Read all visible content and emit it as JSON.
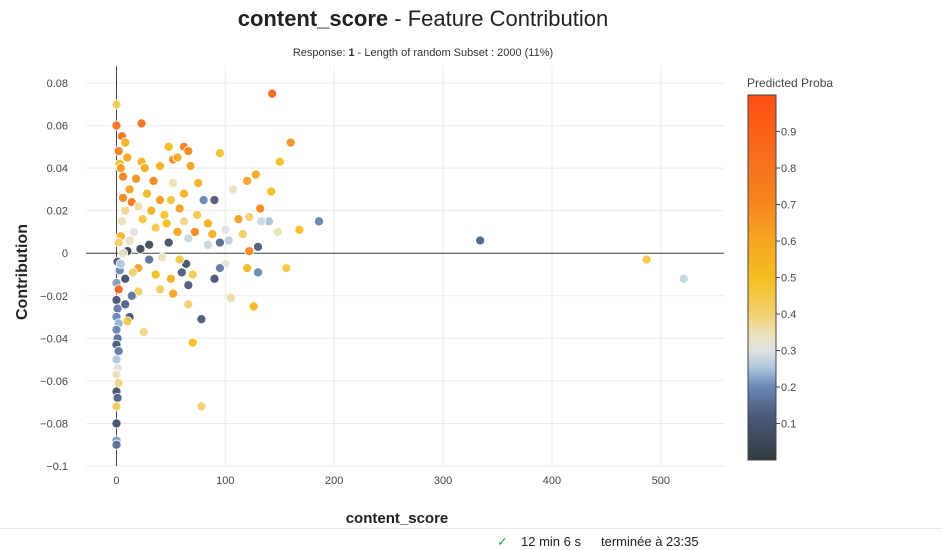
{
  "title_var": "content_score",
  "title_rest": " - Feature Contribution",
  "subtitle": {
    "pre": "Response: ",
    "response": "1",
    "post": " - Length of random Subset : 2000 (11%)"
  },
  "colorbar_title": "Predicted Proba",
  "status": {
    "duration": "12 min 6 s",
    "finished": "terminée à 23:35"
  },
  "chart_data": {
    "type": "scatter",
    "title": "content_score - Feature Contribution",
    "xlabel": "content_score",
    "ylabel": "Contribution",
    "xlim": [
      -28,
      558
    ],
    "ylim": [
      -0.1,
      0.088
    ],
    "xticks": [
      0,
      100,
      200,
      300,
      400,
      500
    ],
    "yticks": [
      -0.1,
      -0.08,
      -0.06,
      -0.04,
      -0.02,
      0,
      0.02,
      0.04,
      0.06,
      0.08
    ],
    "ytick_labels": [
      "−0.1",
      "−0.08",
      "−0.06",
      "−0.04",
      "−0.02",
      "0",
      "0.02",
      "0.04",
      "0.06",
      "0.08"
    ],
    "grid": true,
    "colorscale": {
      "min": 0,
      "max": 1,
      "ticks": [
        0.1,
        0.2,
        0.3,
        0.4,
        0.5,
        0.6,
        0.7,
        0.8,
        0.9
      ],
      "stops": [
        [
          0,
          "#353b44"
        ],
        [
          0.12,
          "#4a5a78"
        ],
        [
          0.2,
          "#6b86b5"
        ],
        [
          0.25,
          "#a9c2dc"
        ],
        [
          0.3,
          "#dfe3e2"
        ],
        [
          0.35,
          "#ede0b5"
        ],
        [
          0.4,
          "#f2d06e"
        ],
        [
          0.5,
          "#f4bf1f"
        ],
        [
          0.6,
          "#f5a623"
        ],
        [
          0.7,
          "#f5871f"
        ],
        [
          0.85,
          "#f66a1c"
        ],
        [
          1.0,
          "#ff4d12"
        ]
      ]
    },
    "points": [
      [
        143,
        0.075,
        0.88
      ],
      [
        23,
        0.061,
        0.82
      ],
      [
        0,
        0.07,
        0.42
      ],
      [
        0,
        0.06,
        0.8
      ],
      [
        160,
        0.052,
        0.66
      ],
      [
        62,
        0.05,
        0.75
      ],
      [
        48,
        0.05,
        0.52
      ],
      [
        66,
        0.048,
        0.7
      ],
      [
        95,
        0.047,
        0.48
      ],
      [
        52,
        0.044,
        0.68
      ],
      [
        56,
        0.045,
        0.58
      ],
      [
        150,
        0.043,
        0.5
      ],
      [
        23,
        0.043,
        0.55
      ],
      [
        40,
        0.041,
        0.56
      ],
      [
        68,
        0.041,
        0.62
      ],
      [
        5,
        0.055,
        0.8
      ],
      [
        8,
        0.052,
        0.55
      ],
      [
        2,
        0.048,
        0.72
      ],
      [
        10,
        0.045,
        0.6
      ],
      [
        3,
        0.042,
        0.5
      ],
      [
        128,
        0.037,
        0.58
      ],
      [
        120,
        0.034,
        0.6
      ],
      [
        75,
        0.033,
        0.55
      ],
      [
        142,
        0.029,
        0.5
      ],
      [
        52,
        0.033,
        0.35
      ],
      [
        107,
        0.03,
        0.33
      ],
      [
        80,
        0.025,
        0.2
      ],
      [
        90,
        0.025,
        0.12
      ],
      [
        62,
        0.028,
        0.55
      ],
      [
        58,
        0.021,
        0.62
      ],
      [
        132,
        0.021,
        0.7
      ],
      [
        112,
        0.016,
        0.62
      ],
      [
        122,
        0.017,
        0.4
      ],
      [
        140,
        0.015,
        0.25
      ],
      [
        133,
        0.015,
        0.28
      ],
      [
        186,
        0.015,
        0.19
      ],
      [
        168,
        0.011,
        0.5
      ],
      [
        148,
        0.01,
        0.35
      ],
      [
        100,
        0.011,
        0.3
      ],
      [
        103,
        0.006,
        0.27
      ],
      [
        116,
        0.009,
        0.42
      ],
      [
        88,
        0.009,
        0.55
      ],
      [
        72,
        0.01,
        0.7
      ],
      [
        66,
        0.007,
        0.28
      ],
      [
        95,
        0.005,
        0.15
      ],
      [
        130,
        0.003,
        0.12
      ],
      [
        122,
        0.001,
        0.7
      ],
      [
        84,
        0.004,
        0.28
      ],
      [
        334,
        0.006,
        0.14
      ],
      [
        487,
        -0.003,
        0.45
      ],
      [
        521,
        -0.012,
        0.28
      ],
      [
        100,
        -0.005,
        0.32
      ],
      [
        95,
        -0.007,
        0.18
      ],
      [
        120,
        -0.007,
        0.52
      ],
      [
        130,
        -0.009,
        0.2
      ],
      [
        156,
        -0.007,
        0.45
      ],
      [
        90,
        -0.012,
        0.1
      ],
      [
        70,
        -0.01,
        0.44
      ],
      [
        60,
        -0.009,
        0.12
      ],
      [
        50,
        -0.012,
        0.56
      ],
      [
        36,
        -0.01,
        0.5
      ],
      [
        20,
        -0.007,
        0.62
      ],
      [
        15,
        -0.009,
        0.4
      ],
      [
        40,
        -0.017,
        0.42
      ],
      [
        52,
        -0.019,
        0.6
      ],
      [
        66,
        -0.024,
        0.4
      ],
      [
        105,
        -0.021,
        0.36
      ],
      [
        126,
        -0.025,
        0.52
      ],
      [
        66,
        -0.015,
        0.12
      ],
      [
        78,
        -0.031,
        0.12
      ],
      [
        15,
        -0.02,
        0.12
      ],
      [
        20,
        -0.018,
        0.42
      ],
      [
        12,
        -0.03,
        0.1
      ],
      [
        25,
        -0.037,
        0.38
      ],
      [
        10,
        -0.032,
        0.45
      ],
      [
        70,
        -0.042,
        0.5
      ],
      [
        78,
        -0.072,
        0.4
      ],
      [
        64,
        -0.005,
        0.08
      ],
      [
        56,
        0.01,
        0.6
      ],
      [
        48,
        0.005,
        0.08
      ],
      [
        30,
        0.004,
        0.06
      ],
      [
        22,
        0.002,
        0.05
      ],
      [
        10,
        0.001,
        0.04
      ],
      [
        36,
        0.012,
        0.44
      ],
      [
        44,
        0.018,
        0.48
      ],
      [
        28,
        0.028,
        0.52
      ],
      [
        18,
        0.035,
        0.66
      ],
      [
        12,
        0.03,
        0.62
      ],
      [
        14,
        0.024,
        0.78
      ],
      [
        8,
        0.02,
        0.38
      ],
      [
        5,
        0.015,
        0.35
      ],
      [
        4,
        0.008,
        0.55
      ],
      [
        2,
        0.005,
        0.4
      ],
      [
        6,
        0.0,
        0.33
      ],
      [
        1,
        -0.004,
        0.12
      ],
      [
        3,
        -0.008,
        0.2
      ],
      [
        0,
        -0.014,
        0.22
      ],
      [
        2,
        -0.017,
        0.88
      ],
      [
        0,
        -0.022,
        0.1
      ],
      [
        1,
        -0.026,
        0.18
      ],
      [
        0,
        -0.03,
        0.2
      ],
      [
        2,
        -0.033,
        0.24
      ],
      [
        0,
        -0.036,
        0.2
      ],
      [
        1,
        -0.04,
        0.16
      ],
      [
        0,
        -0.043,
        0.12
      ],
      [
        2,
        -0.046,
        0.18
      ],
      [
        0,
        -0.05,
        0.26
      ],
      [
        1,
        -0.054,
        0.3
      ],
      [
        0,
        -0.057,
        0.34
      ],
      [
        2,
        -0.061,
        0.38
      ],
      [
        0,
        -0.065,
        0.1
      ],
      [
        1,
        -0.068,
        0.14
      ],
      [
        0,
        -0.072,
        0.42
      ],
      [
        0,
        -0.08,
        0.08
      ],
      [
        0,
        -0.088,
        0.22
      ],
      [
        0,
        -0.09,
        0.16
      ],
      [
        14,
        -0.02,
        0.18
      ],
      [
        8,
        -0.024,
        0.14
      ],
      [
        4,
        0.04,
        0.64
      ],
      [
        6,
        0.036,
        0.72
      ],
      [
        16,
        0.01,
        0.3
      ],
      [
        24,
        0.016,
        0.46
      ],
      [
        32,
        0.02,
        0.56
      ],
      [
        46,
        0.014,
        0.5
      ],
      [
        62,
        0.015,
        0.38
      ],
      [
        74,
        0.018,
        0.44
      ],
      [
        84,
        0.014,
        0.56
      ],
      [
        30,
        -0.003,
        0.16
      ],
      [
        42,
        -0.002,
        0.34
      ],
      [
        58,
        -0.003,
        0.45
      ],
      [
        12,
        0.006,
        0.34
      ],
      [
        8,
        -0.012,
        0.08
      ],
      [
        4,
        -0.005,
        0.26
      ],
      [
        26,
        0.04,
        0.58
      ],
      [
        34,
        0.034,
        0.7
      ],
      [
        40,
        0.025,
        0.64
      ],
      [
        50,
        0.025,
        0.46
      ],
      [
        20,
        0.022,
        0.36
      ],
      [
        6,
        0.026,
        0.7
      ]
    ]
  }
}
